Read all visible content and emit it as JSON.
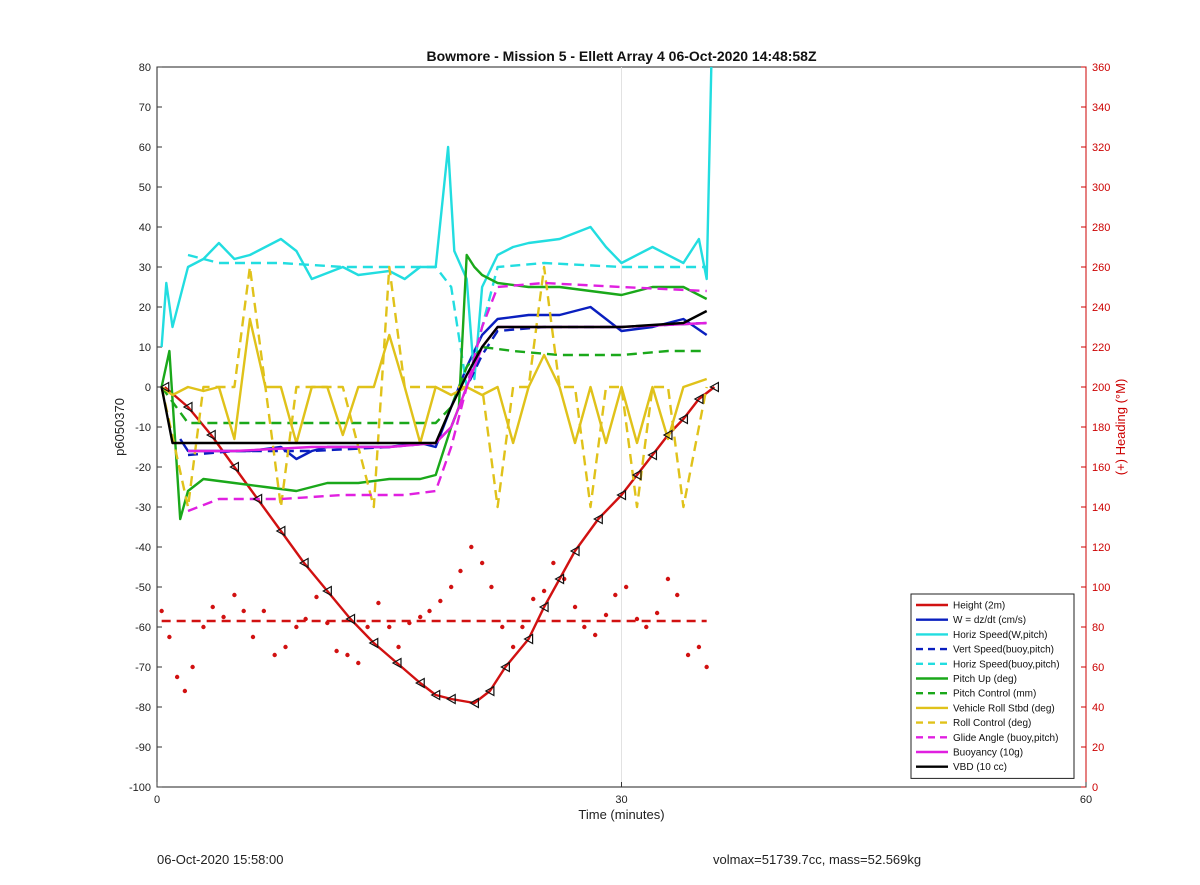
{
  "footer": {
    "left": "06-Oct-2020 15:58:00",
    "right": "volmax=51739.7cc, mass=52.569kg"
  },
  "chart_data": {
    "type": "line",
    "title": "Bowmore - Mission 5 - Ellett Array 4 06-Oct-2020 14:48:58Z",
    "xlabel": "Time (minutes)",
    "ylabel": "p6050370",
    "ylabel_right": "(+) Heading (°M)",
    "xlim": [
      0,
      60
    ],
    "ylim": [
      -100,
      80
    ],
    "ylim_right": [
      0,
      360
    ],
    "xticks": [
      0,
      30,
      60
    ],
    "yticks": [
      -100,
      -90,
      -80,
      -70,
      -60,
      -50,
      -40,
      -30,
      -20,
      -10,
      0,
      10,
      20,
      30,
      40,
      50,
      60,
      70,
      80
    ],
    "yticks_right": [
      0,
      20,
      40,
      60,
      80,
      100,
      120,
      140,
      160,
      180,
      200,
      220,
      240,
      260,
      280,
      300,
      320,
      340,
      360
    ],
    "grid": "x-only",
    "legend_position": "bottom-right",
    "colors": {
      "axis_right": "#cc0000",
      "axis_left": "#333333"
    },
    "series": [
      {
        "name": "Height (2m)",
        "color": "#d11111",
        "style": "solid",
        "axis": "left",
        "x": [
          0.5,
          2,
          3.5,
          5,
          6.5,
          8,
          9.5,
          11,
          12.5,
          14,
          15.5,
          17,
          18,
          19,
          20.5,
          21.5,
          22.5,
          24,
          25,
          26,
          27,
          28.5,
          30,
          31,
          32,
          33,
          34,
          35,
          36
        ],
        "y": [
          0,
          -5,
          -12,
          -20,
          -28,
          -36,
          -44,
          -51,
          -58,
          -64,
          -69,
          -74,
          -77,
          -78,
          -79,
          -76,
          -70,
          -63,
          -55,
          -48,
          -41,
          -33,
          -27,
          -22,
          -17,
          -12,
          -8,
          -3,
          0
        ]
      },
      {
        "name": "W = dz/dt (cm/s)",
        "color": "#0a1fbf",
        "style": "solid",
        "axis": "left",
        "x": [
          1.5,
          2,
          4,
          6,
          8,
          9,
          10,
          11,
          13,
          15,
          17,
          18,
          19,
          20,
          21,
          22,
          24,
          26,
          28,
          30,
          32,
          34,
          35.5
        ],
        "y": [
          -13,
          -16,
          -16,
          -16,
          -15,
          -18,
          -16,
          -15,
          -15,
          -15,
          -14,
          -15,
          -5,
          5,
          13,
          17,
          18,
          18,
          20,
          14,
          15,
          17,
          13
        ]
      },
      {
        "name": "Horiz Speed(W,pitch)",
        "color": "#22dde0",
        "style": "solid",
        "axis": "left",
        "x": [
          0.3,
          0.6,
          1,
          2,
          3,
          4,
          5,
          6,
          8,
          9,
          10,
          12,
          13,
          15,
          16,
          17,
          18,
          18.8,
          19.2,
          20,
          20.5,
          21,
          22,
          23,
          24,
          26,
          28,
          29,
          30,
          32,
          34,
          35,
          35.5,
          35.8
        ],
        "y": [
          10,
          26,
          15,
          30,
          32,
          36,
          32,
          33,
          37,
          34,
          27,
          30,
          28,
          29,
          27,
          30,
          30,
          60,
          34,
          27,
          2,
          25,
          33,
          35,
          36,
          37,
          40,
          35,
          31,
          35,
          31,
          37,
          27,
          80
        ]
      },
      {
        "name": "Vert Speed(buoy,pitch)",
        "color": "#0a1fbf",
        "style": "dashed",
        "axis": "left",
        "x": [
          2,
          5,
          10,
          15,
          18,
          19,
          20,
          21,
          22,
          25,
          30,
          35.5
        ],
        "y": [
          -17,
          -16,
          -16,
          -15,
          -14,
          -10,
          0,
          8,
          14,
          15,
          15,
          16
        ]
      },
      {
        "name": "Horiz Speed(buoy,pitch)",
        "color": "#22dde0",
        "style": "dashed",
        "axis": "left",
        "x": [
          2,
          4,
          8,
          12,
          16,
          18,
          19,
          20,
          21,
          22,
          25,
          30,
          35.5
        ],
        "y": [
          33,
          31,
          31,
          30,
          30,
          30,
          25,
          0,
          15,
          30,
          31,
          30,
          30
        ]
      },
      {
        "name": "Pitch Up (deg)",
        "color": "#1aa81a",
        "style": "solid",
        "axis": "left",
        "x": [
          0.3,
          0.8,
          1.5,
          2,
          3,
          5,
          7,
          9,
          11,
          13,
          15,
          17,
          18,
          19,
          19.5,
          20,
          20.5,
          21,
          22,
          24,
          26,
          28,
          30,
          32,
          34,
          35.5
        ],
        "y": [
          0,
          9,
          -33,
          -26,
          -23,
          -24,
          -25,
          -26,
          -24,
          -24,
          -23,
          -23,
          -22,
          -10,
          -5,
          33,
          30,
          28,
          26,
          25,
          25,
          24,
          23,
          25,
          25,
          22
        ]
      },
      {
        "name": "Pitch Control (mm)",
        "color": "#1aa81a",
        "style": "dashed",
        "axis": "left",
        "x": [
          0.3,
          2,
          5,
          10,
          15,
          18,
          19,
          20,
          21,
          23,
          26,
          30,
          33,
          35.5
        ],
        "y": [
          0,
          -9,
          -9,
          -9,
          -9,
          -9,
          -5,
          5,
          10,
          9,
          8,
          8,
          9,
          9
        ]
      },
      {
        "name": "Vehicle Roll Stbd (deg)",
        "color": "#e0c21a",
        "style": "solid",
        "axis": "left",
        "x": [
          0.3,
          1,
          2,
          3,
          4,
          5,
          6,
          7,
          8,
          9,
          10,
          11,
          12,
          13,
          14,
          15,
          16,
          17,
          18,
          19,
          20,
          21,
          22,
          23,
          24,
          25,
          26,
          27,
          28,
          29,
          30,
          31,
          32,
          33,
          34,
          35.5
        ],
        "y": [
          0,
          -2,
          0,
          -1,
          0,
          -13,
          17,
          0,
          0,
          -14,
          0,
          0,
          -12,
          0,
          0,
          13,
          0,
          -14,
          0,
          -2,
          0,
          -2,
          0,
          -14,
          0,
          8,
          0,
          -14,
          0,
          -14,
          0,
          -14,
          0,
          -13,
          0,
          2
        ]
      },
      {
        "name": "Roll Control (deg)",
        "color": "#e0c21a",
        "style": "dashed",
        "axis": "left",
        "x": [
          0.3,
          2,
          3,
          4,
          5,
          6,
          7,
          8,
          9,
          10,
          12,
          14,
          15,
          16,
          17,
          18,
          19,
          20,
          21,
          22,
          23,
          24,
          25,
          26,
          27,
          28,
          29,
          30,
          31,
          32,
          33,
          34,
          35.5
        ],
        "y": [
          0,
          -30,
          0,
          0,
          0,
          30,
          0,
          -30,
          0,
          0,
          0,
          -30,
          30,
          0,
          0,
          0,
          0,
          0,
          0,
          -30,
          0,
          0,
          30,
          0,
          0,
          -30,
          0,
          0,
          -30,
          0,
          0,
          -30,
          0
        ]
      },
      {
        "name": "Glide Angle (buoy,pitch)",
        "color": "#e020e0",
        "style": "dashed",
        "axis": "left",
        "x": [
          2,
          4,
          8,
          12,
          16,
          18,
          19,
          20,
          21,
          22,
          25,
          30,
          35.5
        ],
        "y": [
          -31,
          -28,
          -28,
          -27,
          -27,
          -26,
          -15,
          0,
          15,
          25,
          26,
          25,
          24
        ]
      },
      {
        "name": "Buoyancy (10g)",
        "color": "#e020e0",
        "style": "solid",
        "axis": "left",
        "x": [
          2,
          5,
          10,
          15,
          18,
          19,
          20,
          21,
          22,
          25,
          30,
          35.5
        ],
        "y": [
          -16,
          -16,
          -15,
          -15,
          -14,
          -10,
          0,
          10,
          15,
          15,
          15,
          16
        ]
      },
      {
        "name": "VBD (10 cc)",
        "color": "#000000",
        "style": "solid",
        "axis": "left",
        "x": [
          0.3,
          1,
          5,
          10,
          15,
          17.5,
          18,
          19,
          20,
          21,
          22,
          25,
          30,
          34,
          35.5
        ],
        "y": [
          0,
          -14,
          -14,
          -14,
          -14,
          -14,
          -14,
          -5,
          3,
          10,
          15,
          15,
          15,
          16,
          19
        ]
      }
    ],
    "heading_scatter": {
      "color": "#d11111",
      "x": [
        0.3,
        0.8,
        1.3,
        1.8,
        2.3,
        3,
        3.6,
        4.3,
        5,
        5.6,
        6.2,
        6.9,
        7.6,
        8.3,
        9,
        9.6,
        10.3,
        11,
        11.6,
        12.3,
        13,
        13.6,
        14.3,
        15,
        15.6,
        16.3,
        17,
        17.6,
        18.3,
        19,
        19.6,
        20.3,
        21,
        21.6,
        22.3,
        23,
        23.6,
        24.3,
        25,
        25.6,
        26.3,
        27,
        27.6,
        28.3,
        29,
        29.6,
        30.3,
        31,
        31.6,
        32.3,
        33,
        33.6,
        34.3,
        35,
        35.5
      ],
      "y": [
        88,
        75,
        55,
        48,
        60,
        80,
        90,
        85,
        96,
        88,
        75,
        88,
        66,
        70,
        80,
        84,
        95,
        82,
        68,
        66,
        62,
        80,
        92,
        80,
        70,
        82,
        85,
        88,
        93,
        100,
        108,
        120,
        112,
        100,
        80,
        70,
        80,
        94,
        98,
        112,
        104,
        90,
        80,
        76,
        86,
        96,
        100,
        84,
        80,
        87,
        104,
        96,
        66,
        70,
        60
      ]
    },
    "heading_mean": {
      "color": "#d11111",
      "style": "dashed",
      "y": 83,
      "x": [
        0.3,
        35.5
      ]
    }
  }
}
